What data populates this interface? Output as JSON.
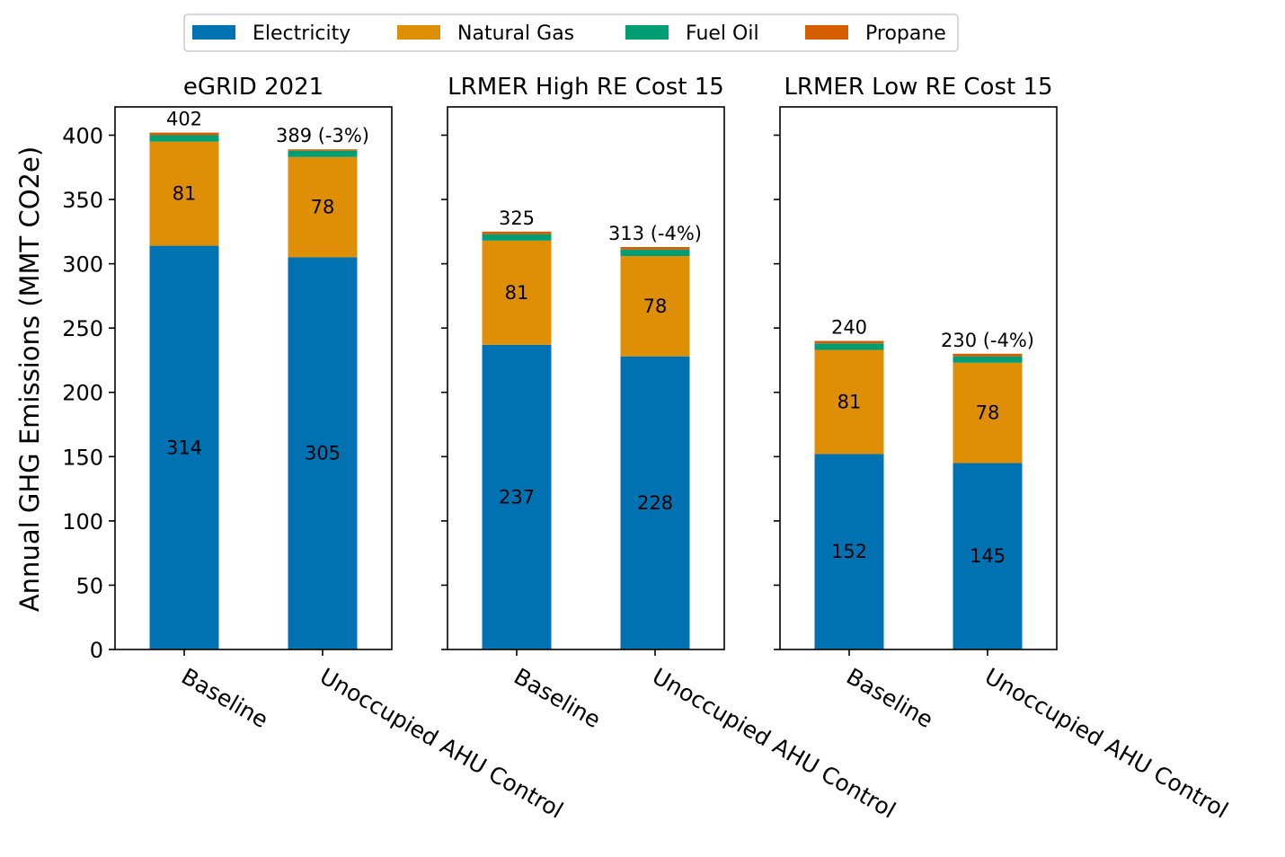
{
  "chart_data": {
    "type": "bar",
    "stacked": true,
    "ylabel": "Annual GHG Emissions (MMT CO2e)",
    "ylim": [
      0,
      422
    ],
    "yticks": [
      0,
      50,
      100,
      150,
      200,
      250,
      300,
      350,
      400
    ],
    "categories": [
      "Baseline",
      "Unoccupied AHU Control"
    ],
    "legend": {
      "placement": "top-center",
      "entries": [
        {
          "name": "Electricity",
          "color": "#0072b2"
        },
        {
          "name": "Natural Gas",
          "color": "#de8f05"
        },
        {
          "name": "Fuel Oil",
          "color": "#029e73"
        },
        {
          "name": "Propane",
          "color": "#d55e00"
        }
      ]
    },
    "panels": [
      {
        "title": "eGRID 2021",
        "series": [
          {
            "name": "Electricity",
            "values": [
              314,
              305
            ],
            "labels": [
              "314",
              "305"
            ]
          },
          {
            "name": "Natural Gas",
            "values": [
              81,
              78
            ],
            "labels": [
              "81",
              "78"
            ]
          },
          {
            "name": "Fuel Oil",
            "values": [
              5,
              5
            ]
          },
          {
            "name": "Propane",
            "values": [
              2,
              1
            ]
          }
        ],
        "totals": [
          "402",
          "389 (-3%)"
        ]
      },
      {
        "title": "LRMER High RE Cost 15",
        "series": [
          {
            "name": "Electricity",
            "values": [
              237,
              228
            ],
            "labels": [
              "237",
              "228"
            ]
          },
          {
            "name": "Natural Gas",
            "values": [
              81,
              78
            ],
            "labels": [
              "81",
              "78"
            ]
          },
          {
            "name": "Fuel Oil",
            "values": [
              5,
              5
            ]
          },
          {
            "name": "Propane",
            "values": [
              2,
              2
            ]
          }
        ],
        "totals": [
          "325",
          "313 (-4%)"
        ]
      },
      {
        "title": "LRMER Low RE Cost 15",
        "series": [
          {
            "name": "Electricity",
            "values": [
              152,
              145
            ],
            "labels": [
              "152",
              "145"
            ]
          },
          {
            "name": "Natural Gas",
            "values": [
              81,
              78
            ],
            "labels": [
              "81",
              "78"
            ]
          },
          {
            "name": "Fuel Oil",
            "values": [
              5,
              5
            ]
          },
          {
            "name": "Propane",
            "values": [
              2,
              2
            ]
          }
        ],
        "totals": [
          "240",
          "230 (-4%)"
        ]
      }
    ]
  }
}
